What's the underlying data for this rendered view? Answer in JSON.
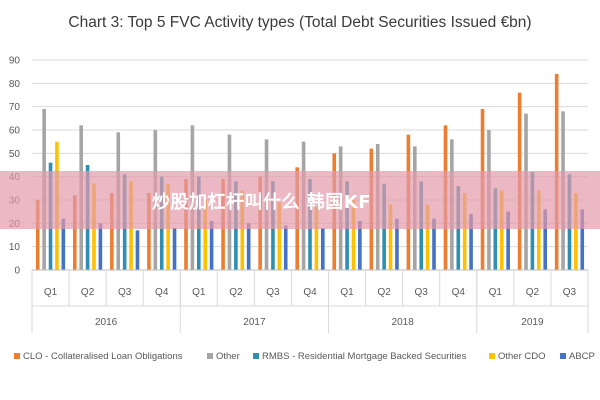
{
  "chart_data": {
    "type": "bar",
    "title": "Chart 3: Top 5 FVC Activity types (Total Debt Securities Issued €bn)",
    "ylim": [
      0,
      90
    ],
    "yticks": [
      0,
      10,
      20,
      30,
      40,
      50,
      60,
      70,
      80,
      90
    ],
    "grid": true,
    "legend_position": "bottom",
    "categories": [
      "Q1",
      "Q2",
      "Q3",
      "Q4",
      "Q1",
      "Q2",
      "Q3",
      "Q4",
      "Q1",
      "Q2",
      "Q3",
      "Q4",
      "Q1",
      "Q2",
      "Q3"
    ],
    "years": [
      {
        "label": "2016",
        "count": 4
      },
      {
        "label": "2017",
        "count": 4
      },
      {
        "label": "2018",
        "count": 4
      },
      {
        "label": "2019",
        "count": 3
      }
    ],
    "series": [
      {
        "name": "CLO - Collateralised Loan Obligations",
        "color": "#ed7d31",
        "values": [
          30,
          32,
          33,
          33,
          39,
          39,
          40,
          44,
          50,
          52,
          58,
          62,
          69,
          76,
          84
        ]
      },
      {
        "name": "Other",
        "color": "#a5a5a5",
        "values": [
          69,
          62,
          59,
          60,
          62,
          58,
          56,
          55,
          53,
          54,
          53,
          56,
          60,
          67,
          68
        ]
      },
      {
        "name": "RMBS - Residential Mortgage Backed Securities",
        "color": "#2e8fb3",
        "values": [
          46,
          45,
          41,
          40,
          40,
          38,
          38,
          39,
          38,
          37,
          38,
          36,
          35,
          42,
          41
        ]
      },
      {
        "name": "Other CDO",
        "color": "#ffc000",
        "values": [
          55,
          37,
          38,
          37,
          30,
          34,
          29,
          27,
          30,
          28,
          28,
          33,
          34,
          34,
          33
        ]
      },
      {
        "name": "ABCP",
        "color": "#4472c4",
        "values": [
          22,
          20,
          17,
          18,
          21,
          20,
          19,
          18,
          21,
          22,
          22,
          24,
          25,
          26,
          26
        ]
      }
    ]
  },
  "overlay": {
    "banner_text": "炒股加杠杆叫什么 韩国KF"
  }
}
